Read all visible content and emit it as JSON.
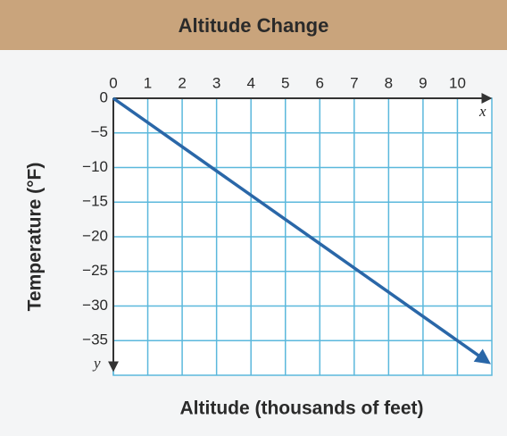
{
  "chart_data": {
    "type": "line",
    "title": "Altitude Change",
    "x_label": "Altitude (thousands of feet)",
    "y_label": "Temperature (°F)",
    "x_axis_symbol": "x",
    "y_axis_symbol": "y",
    "x": [
      0,
      10.9
    ],
    "series": [
      {
        "name": "Temperature",
        "color": "#2a67a8",
        "values": [
          0,
          -38.15
        ]
      }
    ],
    "xlim": [
      0,
      11
    ],
    "ylim": [
      -40,
      0
    ],
    "xticks": [
      0,
      1,
      2,
      3,
      4,
      5,
      6,
      7,
      8,
      9,
      10
    ],
    "yticks": [
      0,
      {
        "value": -5,
        "label": "−5"
      },
      {
        "value": -10,
        "label": "−10"
      },
      {
        "value": -15,
        "label": "−15"
      },
      {
        "value": -20,
        "label": "−20"
      },
      {
        "value": -25,
        "label": "−25"
      },
      {
        "value": -30,
        "label": "−30"
      },
      {
        "value": -35,
        "label": "−35"
      }
    ],
    "grid": true
  }
}
